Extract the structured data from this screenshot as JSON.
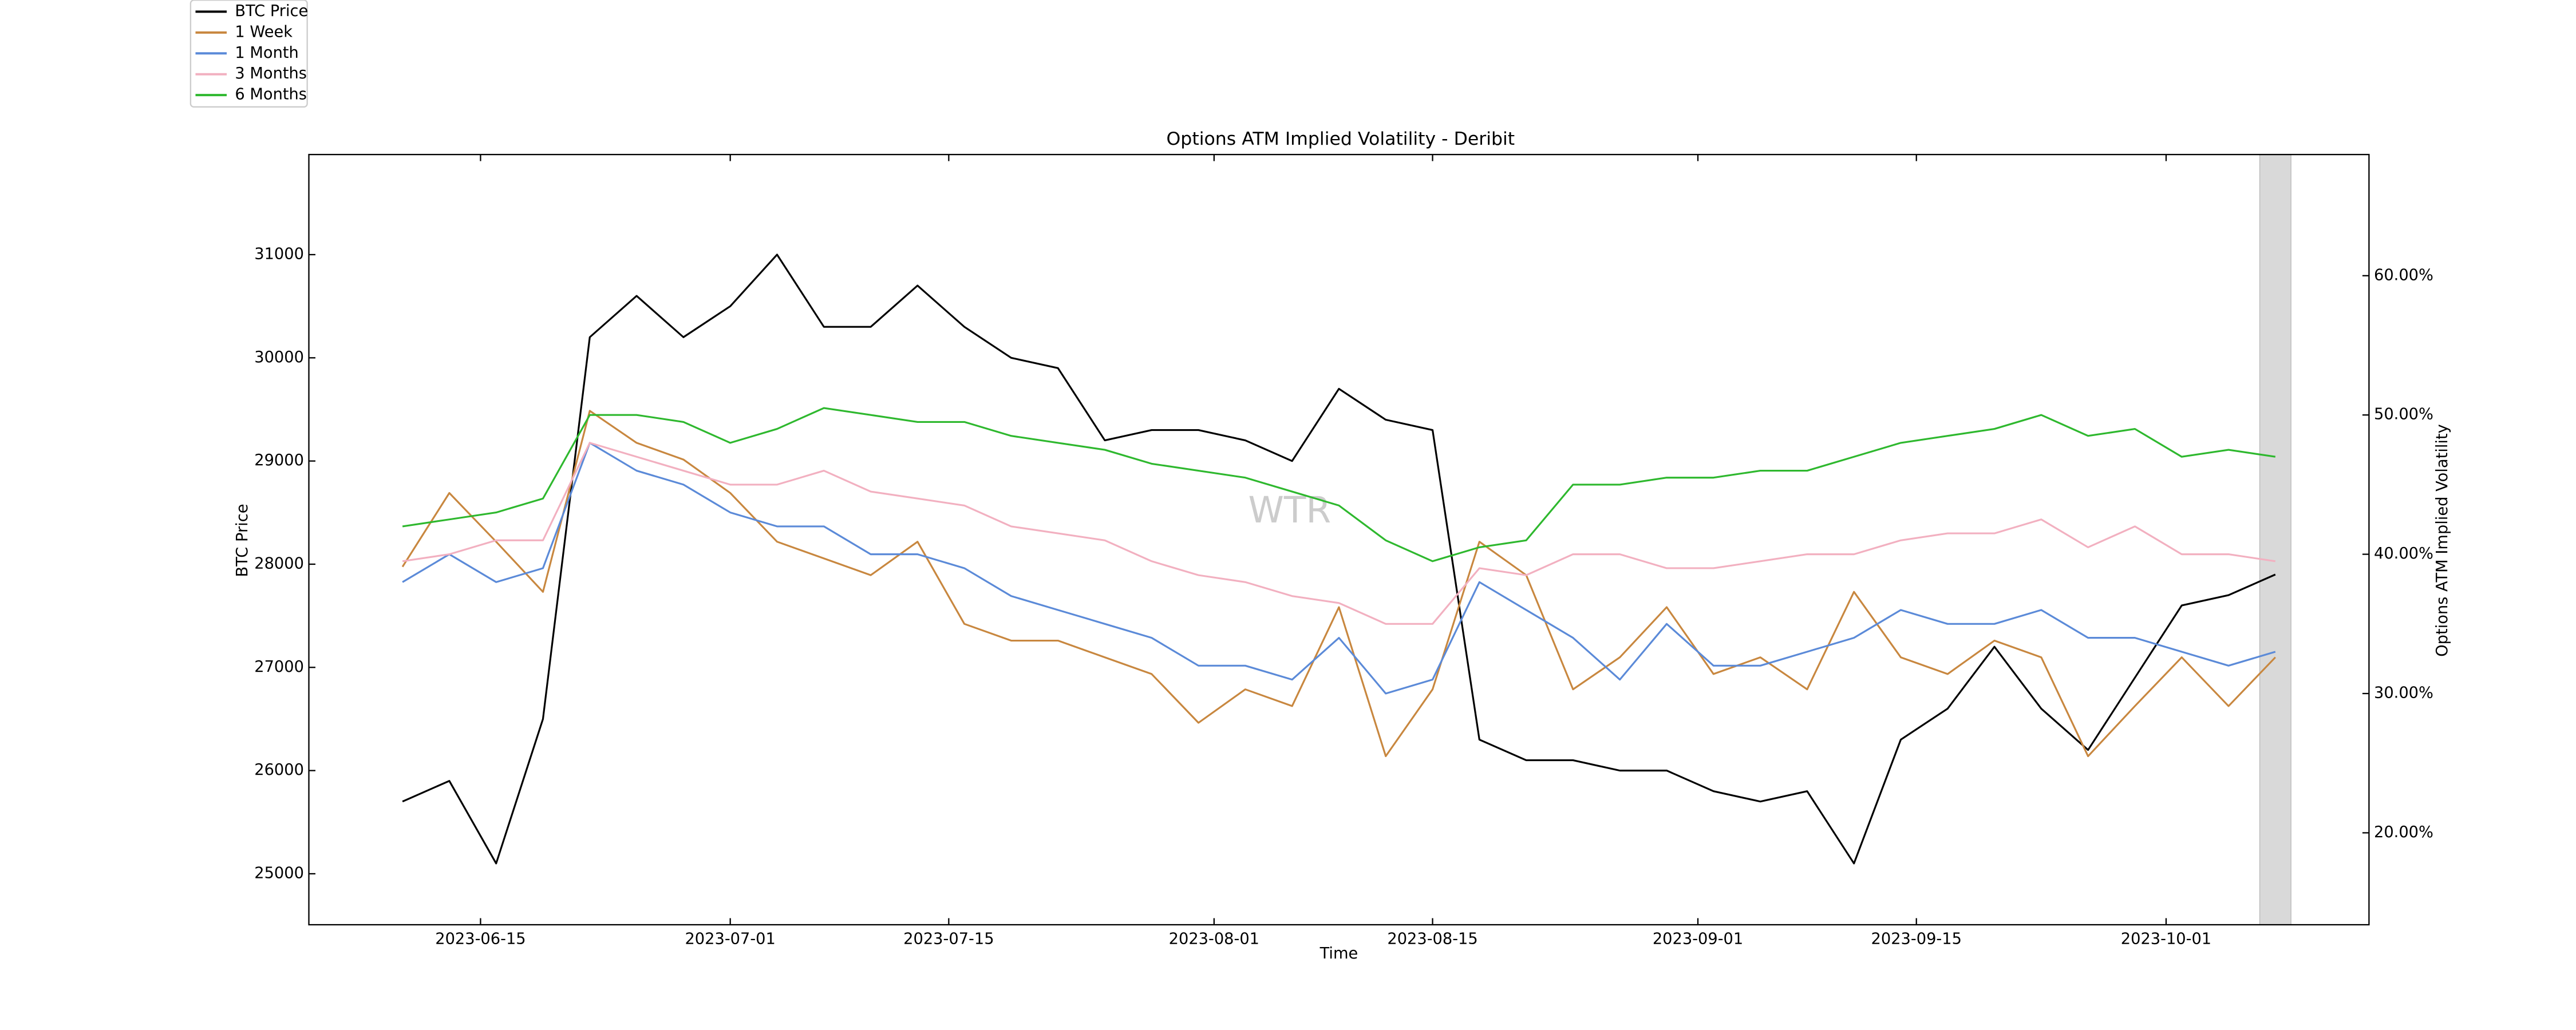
{
  "chart_data": {
    "type": "line",
    "title": "Options ATM Implied Volatility - Deribit",
    "xlabel": "Time",
    "ylabel": "BTC Price",
    "y2label": "Options ATM Implied Volatility",
    "watermark": "WTR",
    "x": [
      "2023-06-10",
      "2023-06-13",
      "2023-06-16",
      "2023-06-19",
      "2023-06-22",
      "2023-06-25",
      "2023-06-28",
      "2023-07-01",
      "2023-07-04",
      "2023-07-07",
      "2023-07-10",
      "2023-07-13",
      "2023-07-16",
      "2023-07-19",
      "2023-07-22",
      "2023-07-25",
      "2023-07-28",
      "2023-07-31",
      "2023-08-03",
      "2023-08-06",
      "2023-08-09",
      "2023-08-12",
      "2023-08-15",
      "2023-08-18",
      "2023-08-21",
      "2023-08-24",
      "2023-08-27",
      "2023-08-30",
      "2023-09-02",
      "2023-09-05",
      "2023-09-08",
      "2023-09-11",
      "2023-09-14",
      "2023-09-17",
      "2023-09-20",
      "2023-09-23",
      "2023-09-26",
      "2023-09-29",
      "2023-10-02",
      "2023-10-05",
      "2023-10-08"
    ],
    "xlim": [
      "2023-06-04",
      "2023-10-14"
    ],
    "xticks": [
      "2023-06-15",
      "2023-07-01",
      "2023-07-15",
      "2023-08-01",
      "2023-08-15",
      "2023-09-01",
      "2023-09-15",
      "2023-10-01"
    ],
    "ylim": [
      24506,
      31970
    ],
    "yticks": [
      25000,
      26000,
      27000,
      28000,
      29000,
      30000,
      31000
    ],
    "y2lim": [
      13.4,
      68.7
    ],
    "y2ticks": [
      {
        "value": 20,
        "label": "20.00%"
      },
      {
        "value": 30,
        "label": "30.00%"
      },
      {
        "value": 40,
        "label": "40.00%"
      },
      {
        "value": 50,
        "label": "50.00%"
      },
      {
        "value": 60,
        "label": "60.00%"
      }
    ],
    "highlight": [
      "2023-10-07",
      "2023-10-09"
    ],
    "legend": "upper left outside",
    "series": [
      {
        "name": "BTC Price",
        "color": "#000000",
        "values": [
          25700,
          25900,
          25100,
          26500,
          30200,
          30600,
          30200,
          30500,
          31000,
          30300,
          30300,
          30700,
          30300,
          30000,
          29900,
          29200,
          29300,
          29300,
          29200,
          29000,
          29700,
          29400,
          29300,
          26300,
          26100,
          26100,
          26000,
          26000,
          25800,
          25700,
          25800,
          25100,
          26300,
          26600,
          27200,
          26600,
          26200,
          26900,
          27600,
          27700,
          27900
        ]
      },
      {
        "name": "1 Week",
        "color": "#c8873f",
        "axis": "y2",
        "values": [
          39.1,
          44.4,
          40.9,
          37.3,
          50.3,
          48,
          46.8,
          44.4,
          40.9,
          39.7,
          38.5,
          40.9,
          35,
          33.8,
          33.8,
          32.6,
          31.4,
          27.9,
          30.3,
          29.1,
          36.2,
          25.5,
          30.3,
          40.9,
          38.5,
          30.3,
          32.6,
          36.2,
          31.4,
          32.6,
          30.3,
          37.3,
          32.6,
          31.4,
          33.8,
          32.6,
          25.5,
          29.1,
          32.6,
          29.1,
          32.6
        ]
      },
      {
        "name": "1 Month",
        "color": "#5b8ad8",
        "axis": "y2",
        "values": [
          38,
          40,
          38,
          39,
          48,
          46,
          45,
          43,
          42,
          42,
          40,
          40,
          39,
          37,
          36,
          35,
          34,
          32,
          32,
          31,
          34,
          30,
          31,
          38,
          36,
          34,
          31,
          35,
          32,
          32,
          33,
          34,
          36,
          35,
          35,
          36,
          34,
          34,
          33,
          32,
          33
        ]
      },
      {
        "name": "3 Months",
        "color": "#f2b0c0",
        "axis": "y2",
        "values": [
          39.5,
          40,
          41,
          41,
          48,
          47,
          46,
          45,
          45,
          46,
          44.5,
          44,
          43.5,
          42,
          41.5,
          41,
          39.5,
          38.5,
          38,
          37,
          36.5,
          35,
          35,
          39,
          38.5,
          40,
          40,
          39,
          39,
          39.5,
          40,
          40,
          41,
          41.5,
          41.5,
          42.5,
          40.5,
          42,
          40,
          40,
          39.5
        ]
      },
      {
        "name": "6 Months",
        "color": "#2eb82e",
        "axis": "y2",
        "values": [
          42,
          42.5,
          43,
          44,
          50,
          50,
          49.5,
          48,
          49,
          50.5,
          50,
          49.5,
          49.5,
          48.5,
          48,
          47.5,
          46.5,
          46,
          45.5,
          44.5,
          43.5,
          41,
          39.5,
          40.5,
          41,
          45,
          45,
          45.5,
          45.5,
          46,
          46,
          47,
          48,
          48.5,
          49,
          50,
          48.5,
          49,
          47,
          47.5,
          47
        ]
      }
    ]
  }
}
